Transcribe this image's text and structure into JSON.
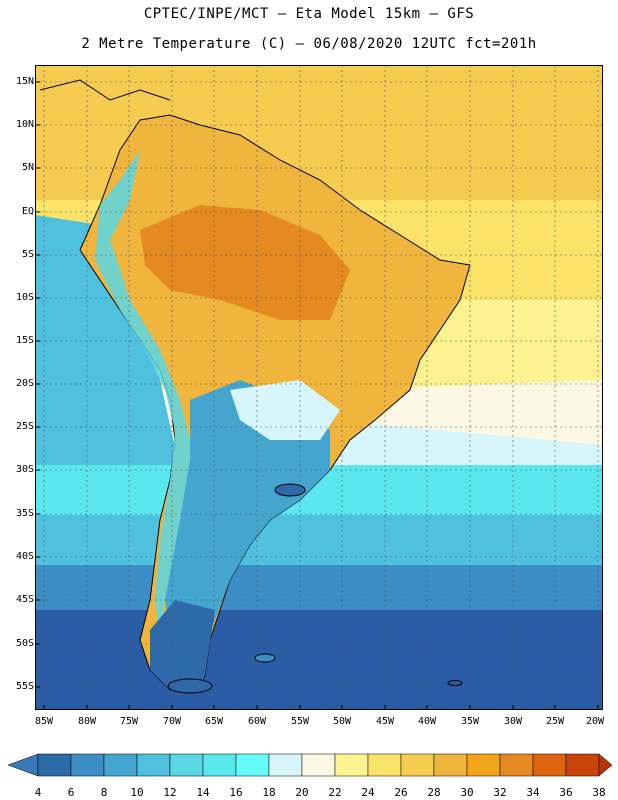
{
  "header": {
    "line1": "CPTEC/INPE/MCT –  Eta Model 15km – GFS",
    "line2": "2 Metre Temperature (C) – 06/08/2020 12UTC fct=201h"
  },
  "axes": {
    "lat_labels": [
      "15N",
      "10N",
      "5N",
      "EQ",
      "5S",
      "10S",
      "15S",
      "20S",
      "25S",
      "30S",
      "35S",
      "40S",
      "45S",
      "50S",
      "55S"
    ],
    "lon_labels": [
      "85W",
      "80W",
      "75W",
      "70W",
      "65W",
      "60W",
      "55W",
      "50W",
      "45W",
      "40W",
      "35W",
      "30W",
      "25W",
      "20W"
    ]
  },
  "colorbar": {
    "labels": [
      "4",
      "6",
      "8",
      "10",
      "12",
      "14",
      "16",
      "18",
      "20",
      "22",
      "24",
      "26",
      "28",
      "30",
      "32",
      "34",
      "36",
      "38"
    ],
    "colors": [
      "#3b78b8",
      "#2e6aaa",
      "#3d8ec6",
      "#44a6cf",
      "#4fc0dd",
      "#5ad6e4",
      "#5ae8ee",
      "#67fcfc",
      "#d6f6fc",
      "#fdf8e4",
      "#fdf290",
      "#fbe36a",
      "#f5cb50",
      "#efb53c",
      "#f2a518",
      "#e58a20",
      "#de6410",
      "#c84408",
      "#b83408"
    ],
    "lower_arrow_color": "#3b78b8",
    "upper_arrow_color": "#b83408"
  },
  "palette": {
    "ocean_deep": "#2b5da6",
    "ocean_mid": "#3d8ec6",
    "ocean_light": "#4fc0dd",
    "cyan": "#5ae8ee",
    "pale_blue": "#d6f6fc",
    "cream": "#fdf8e4",
    "yellow": "#fbe36a",
    "gold": "#f5cb50",
    "orange_warm": "#efb53c",
    "orange_hot": "#e58a20"
  }
}
